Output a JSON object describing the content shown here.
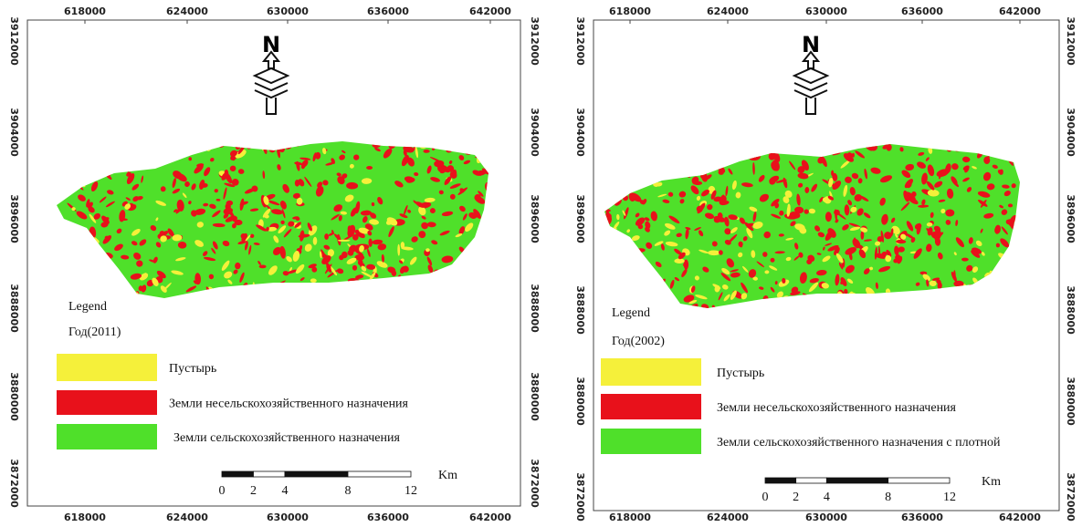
{
  "maps": [
    {
      "xticks": [
        618000,
        624000,
        630000,
        636000,
        642000
      ],
      "yticks": [
        3912000,
        3904000,
        3896000,
        3888000,
        3880000,
        3872000
      ],
      "north": "N",
      "legend": {
        "title": "Legend",
        "year": "Год(2011)",
        "items": [
          "Пустырь",
          "Земли несельскохозяйственного назначения",
          "Земли сельскохозяйственного назначения"
        ]
      },
      "scale": {
        "labels": [
          0,
          2,
          4,
          8,
          12
        ],
        "unit": "Km"
      }
    },
    {
      "xticks": [
        618000,
        624000,
        630000,
        636000,
        642000
      ],
      "yticks": [
        3912000,
        3904000,
        3896000,
        3888000,
        3880000,
        3872000
      ],
      "north": "N",
      "legend": {
        "title": "Legend",
        "year": "Год(2002)",
        "items": [
          "Пустырь",
          "Земли несельскохозяйственного назначения",
          "Земли сельскохозяйственного назначения с плотной"
        ]
      },
      "scale": {
        "labels": [
          0,
          2,
          4,
          8,
          12
        ],
        "unit": "Km"
      }
    }
  ]
}
